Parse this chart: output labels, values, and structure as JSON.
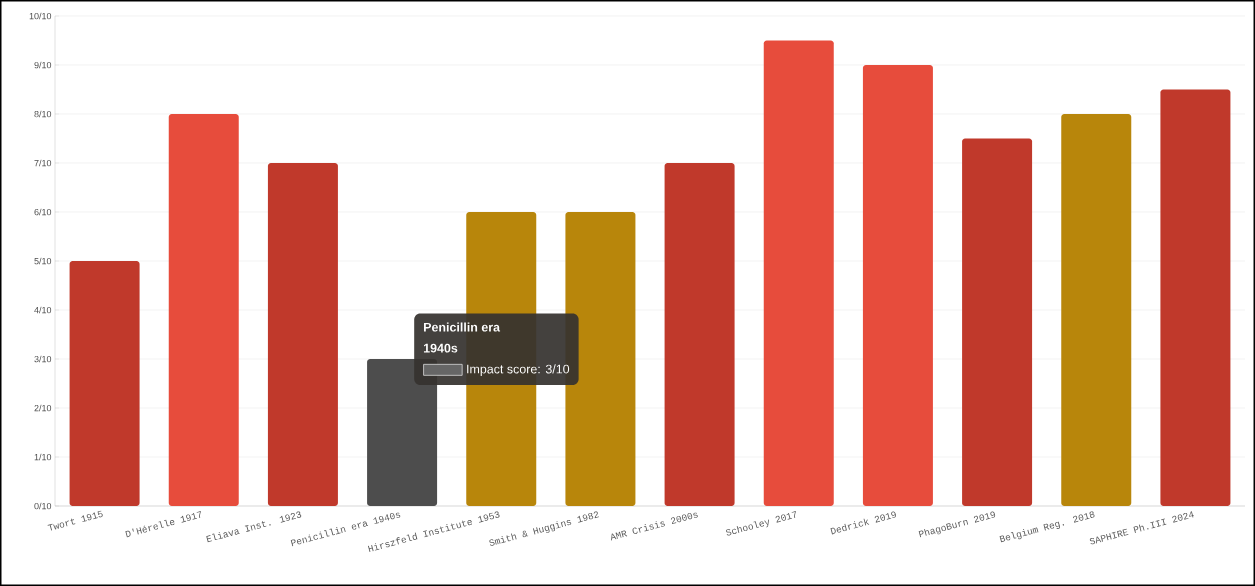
{
  "chart_data": {
    "type": "bar",
    "categories": [
      "Twort 1915",
      "D'Hérelle 1917",
      "Eliava Inst. 1923",
      "Penicillin era 1940s",
      "Hirszfeld Institute 1953",
      "Smith & Huggins 1982",
      "AMR Crisis 2000s",
      "Schooley 2017",
      "Dedrick 2019",
      "PhagoBurn 2019",
      "Belgium Reg. 2018",
      "SAPHIRE Ph.III 2024"
    ],
    "values": [
      0.5,
      0.8,
      0.7,
      0.3,
      0.6,
      0.6,
      0.7,
      0.95,
      0.9,
      0.75,
      0.8,
      0.85
    ],
    "colors": [
      "#c0392b",
      "#e74c3c",
      "#c0392b",
      "#4d4d4d",
      "#b8860b",
      "#b8860b",
      "#c0392b",
      "#e74c3c",
      "#e74c3c",
      "#c0392b",
      "#b8860b",
      "#c0392b"
    ],
    "ylim": [
      0,
      1
    ],
    "yticks": [
      {
        "value": 0,
        "label": "0/10"
      },
      {
        "value": 0.1,
        "label": "1/10"
      },
      {
        "value": 0.2,
        "label": "2/10"
      },
      {
        "value": 0.3,
        "label": "3/10"
      },
      {
        "value": 0.4,
        "label": "4/10"
      },
      {
        "value": 0.5,
        "label": "5/10"
      },
      {
        "value": 0.6,
        "label": "6/10"
      },
      {
        "value": 0.7,
        "label": "7/10"
      },
      {
        "value": 0.8,
        "label": "8/10"
      },
      {
        "value": 0.9,
        "label": "9/10"
      },
      {
        "value": 1,
        "label": "10/10"
      }
    ],
    "grid": "y",
    "annotations": [
      "Penicillin era",
      "1940s",
      "Impact score: 3/10"
    ]
  }
}
